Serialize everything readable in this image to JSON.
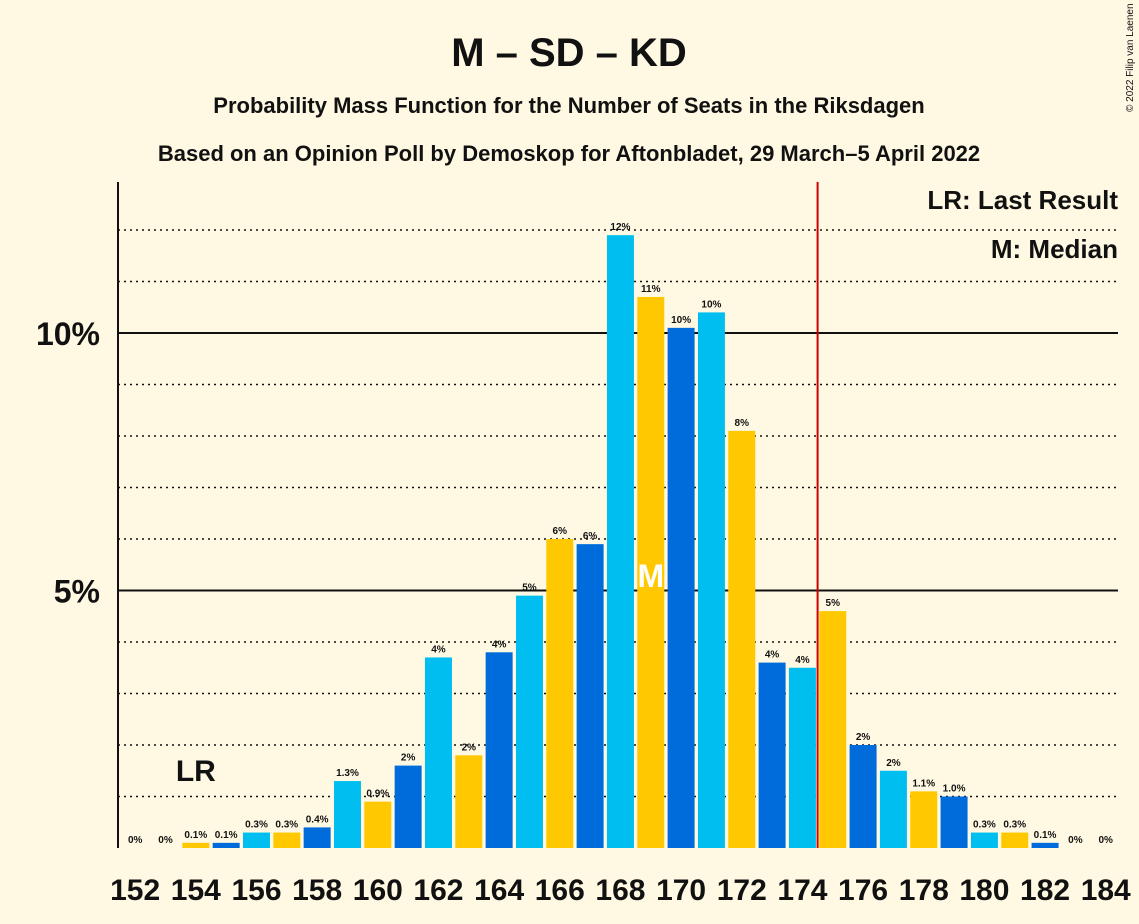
{
  "title": "M – SD – KD",
  "subtitle1": "Probability Mass Function for the Number of Seats in the Riksdagen",
  "subtitle2": "Based on an Opinion Poll by Demoskop for Aftonbladet, 29 March–5 April 2022",
  "copyright": "© 2022 Filip van Laenen",
  "legend": {
    "last_result": "LR: Last Result",
    "median": "M: Median"
  },
  "markers": {
    "lr_label": "LR",
    "median_label": "M",
    "last_result_seat": 154,
    "median_seat": 169,
    "majority_threshold": 175
  },
  "colors": {
    "dark_blue": "#006cdc",
    "light_blue": "#00bff0",
    "yellow": "#ffc800",
    "threshold_line": "#cc0000",
    "background": "#fff9e3"
  },
  "chart_data": {
    "type": "bar",
    "x": [
      152,
      153,
      154,
      155,
      156,
      157,
      158,
      159,
      160,
      161,
      162,
      163,
      164,
      165,
      166,
      167,
      168,
      169,
      170,
      171,
      172,
      173,
      174,
      175,
      176,
      177,
      178,
      179,
      180,
      181,
      182,
      183,
      184
    ],
    "values": [
      0,
      0,
      0.1,
      0.1,
      0.3,
      0.3,
      0.4,
      1.3,
      0.9,
      1.6,
      3.7,
      1.8,
      3.8,
      4.9,
      6.0,
      5.9,
      11.9,
      10.7,
      10.1,
      10.4,
      8.1,
      3.6,
      3.5,
      4.6,
      2.0,
      1.5,
      1.1,
      1.0,
      0.3,
      0.3,
      0.1,
      0,
      0
    ],
    "labels": [
      "0%",
      "0%",
      "0.1%",
      "0.1%",
      "0.3%",
      "0.3%",
      "0.4%",
      "1.3%",
      "0.9%",
      "2%",
      "4%",
      "2%",
      "4%",
      "5%",
      "6%",
      "6%",
      "12%",
      "11%",
      "10%",
      "10%",
      "8%",
      "4%",
      "4%",
      "5%",
      "2%",
      "2%",
      "1.1%",
      "1.0%",
      "0.3%",
      "0.3%",
      "0.1%",
      "0%",
      "0%"
    ],
    "x_tick_labels": [
      "152",
      "154",
      "156",
      "158",
      "160",
      "162",
      "164",
      "166",
      "168",
      "170",
      "172",
      "174",
      "176",
      "178",
      "180",
      "182",
      "184"
    ],
    "y_tick_labels": [
      "5%",
      "10%"
    ],
    "y_ticks": [
      5,
      10
    ],
    "ylim": [
      0,
      13
    ],
    "grid": "dotted every 1%, solid at 5% and 10%",
    "legend_position": "top-right"
  }
}
